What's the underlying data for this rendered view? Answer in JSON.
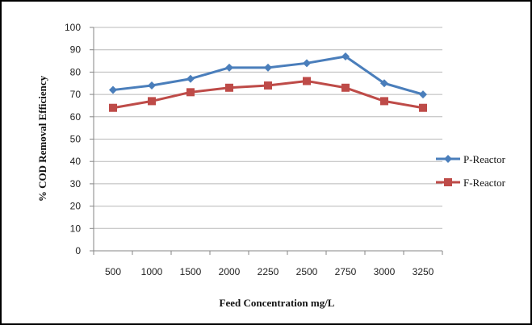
{
  "chart_data": {
    "type": "line",
    "categories": [
      "500",
      "1000",
      "1500",
      "2000",
      "2250",
      "2500",
      "2750",
      "3000",
      "3250"
    ],
    "series": [
      {
        "name": "P-Reactor",
        "values": [
          72,
          74,
          77,
          82,
          82,
          84,
          87,
          75,
          70
        ],
        "color": "#4a7ebb",
        "marker": "diamond"
      },
      {
        "name": "F-Reactor",
        "values": [
          64,
          67,
          71,
          73,
          74,
          76,
          73,
          67,
          64
        ],
        "color": "#be4b48",
        "marker": "square"
      }
    ],
    "title": "",
    "xlabel": "Feed Concentration mg/L",
    "ylabel": "% COD Removal Efficiency",
    "ylim": [
      0,
      100
    ],
    "yticks": [
      0,
      10,
      20,
      30,
      40,
      50,
      60,
      70,
      80,
      90,
      100
    ],
    "grid": "horizontal",
    "legend": "right"
  }
}
